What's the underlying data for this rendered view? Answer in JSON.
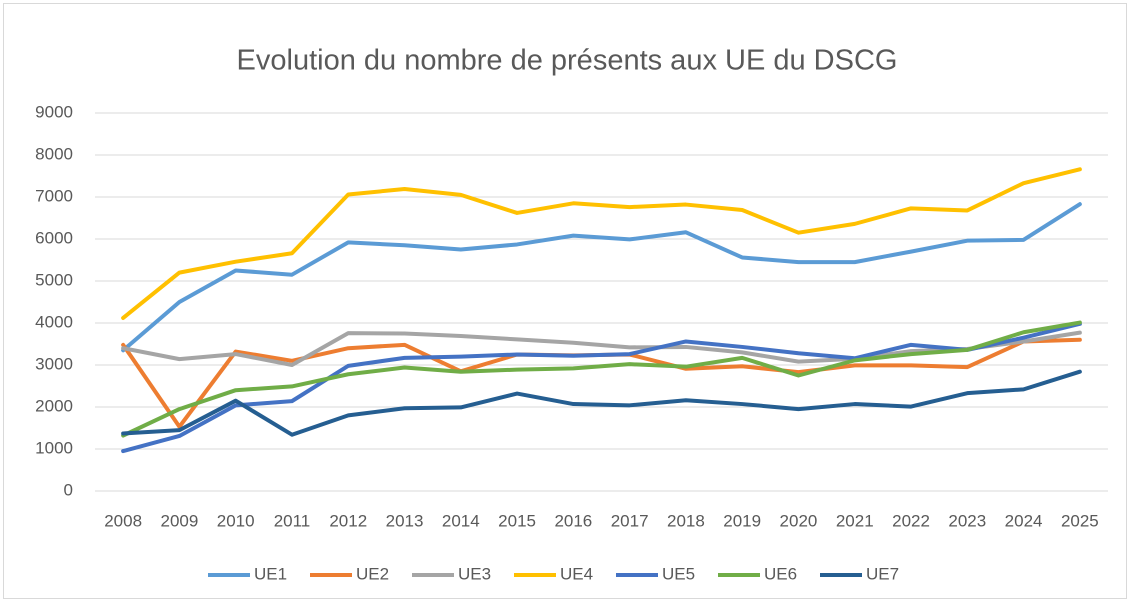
{
  "chart_data": {
    "type": "line",
    "title": "Evolution du nombre de présents aux UE du DSCG",
    "categories": [
      "2008",
      "2009",
      "2010",
      "2011",
      "2012",
      "2013",
      "2014",
      "2015",
      "2016",
      "2017",
      "2018",
      "2019",
      "2020",
      "2021",
      "2022",
      "2023",
      "2024",
      "2025"
    ],
    "series": [
      {
        "name": "UE1",
        "color": "#5b9bd5",
        "values": [
          3350,
          4500,
          5250,
          5150,
          5920,
          5850,
          5750,
          5870,
          6080,
          5990,
          6160,
          5560,
          5450,
          5450,
          5700,
          5960,
          5980,
          6830
        ]
      },
      {
        "name": "UE2",
        "color": "#ed7d31",
        "values": [
          3480,
          1530,
          3320,
          3100,
          3400,
          3480,
          2850,
          3250,
          3230,
          3250,
          2910,
          2970,
          2830,
          2990,
          2990,
          2950,
          3560,
          3600
        ]
      },
      {
        "name": "UE3",
        "color": "#a5a5a5",
        "values": [
          3400,
          3140,
          3260,
          3000,
          3760,
          3750,
          3690,
          3610,
          3530,
          3420,
          3430,
          3300,
          3080,
          3150,
          3330,
          3380,
          3560,
          3770
        ]
      },
      {
        "name": "UE4",
        "color": "#ffc000",
        "values": [
          4120,
          5200,
          5460,
          5660,
          7060,
          7190,
          7050,
          6620,
          6850,
          6760,
          6820,
          6690,
          6150,
          6360,
          6730,
          6680,
          7330,
          7660
        ]
      },
      {
        "name": "UE5",
        "color": "#4472c4",
        "values": [
          950,
          1310,
          2040,
          2140,
          2980,
          3170,
          3200,
          3250,
          3220,
          3260,
          3560,
          3430,
          3280,
          3160,
          3480,
          3360,
          3650,
          3980
        ]
      },
      {
        "name": "UE6",
        "color": "#70ad47",
        "values": [
          1320,
          1950,
          2400,
          2490,
          2780,
          2940,
          2840,
          2890,
          2920,
          3020,
          2960,
          3170,
          2750,
          3110,
          3260,
          3360,
          3780,
          4010
        ]
      },
      {
        "name": "UE7",
        "color": "#255e91",
        "values": [
          1370,
          1450,
          2150,
          1340,
          1800,
          1970,
          1990,
          2320,
          2070,
          2040,
          2160,
          2070,
          1950,
          2070,
          2010,
          2330,
          2420,
          2840
        ]
      }
    ],
    "ylim": [
      0,
      9000
    ],
    "yticks": [
      0,
      1000,
      2000,
      3000,
      4000,
      5000,
      6000,
      7000,
      8000,
      9000
    ],
    "grid": true,
    "legend": "bottom"
  }
}
